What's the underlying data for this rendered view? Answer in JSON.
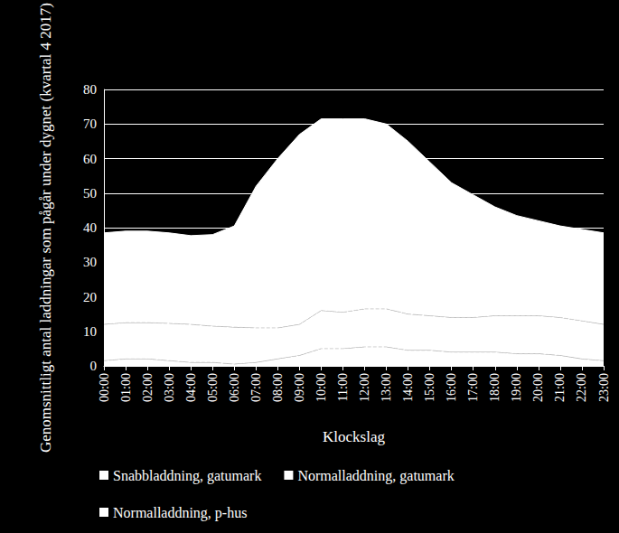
{
  "chart_data": {
    "type": "area",
    "stacked": true,
    "x_label": "Klockslag",
    "y_label": "Genomsnittligt antal laddningar som pågår under dygnet (kvartal 4 2017)",
    "categories": [
      "00:00",
      "01:00",
      "02:00",
      "03:00",
      "04:00",
      "05:00",
      "06:00",
      "07:00",
      "08:00",
      "09:00",
      "10:00",
      "11:00",
      "12:00",
      "13:00",
      "14:00",
      "15:00",
      "16:00",
      "17:00",
      "18:00",
      "19:00",
      "20:00",
      "21:00",
      "22:00",
      "23:00"
    ],
    "series": [
      {
        "name": "Snabbladdning, gatumark",
        "color": "#ffffff",
        "line_style": "dashed",
        "values": [
          1.5,
          2,
          2,
          1.5,
          1,
          1,
          0.5,
          1,
          2,
          3,
          5,
          5,
          5.5,
          5.5,
          4.5,
          4.5,
          4,
          4,
          4,
          3.5,
          3.5,
          3,
          2,
          1.5
        ]
      },
      {
        "name": "Normalladdning, gatumark",
        "color": "#ffffff",
        "line_style": "dashed",
        "values": [
          10.5,
          10.5,
          10.5,
          10.8,
          11,
          10.5,
          10.7,
          10,
          9,
          9,
          11,
          10.5,
          11,
          11,
          10.5,
          10,
          10,
          10,
          10.5,
          11,
          11,
          11,
          11,
          10.5
        ]
      },
      {
        "name": "Normalladdning, p-hus",
        "color": "#ffffff",
        "line_style": "solid",
        "values": [
          26.5,
          26.5,
          26.5,
          26.2,
          25.7,
          26.5,
          29.3,
          41,
          49,
          55,
          55.5,
          56,
          55,
          53.5,
          50,
          44.5,
          39,
          35.5,
          31.5,
          29,
          27.5,
          26.5,
          26.5,
          26.5
        ]
      }
    ],
    "ylim": [
      0,
      80
    ],
    "yticks": [
      0,
      10,
      20,
      30,
      40,
      50,
      60,
      70,
      80
    ],
    "grid": true,
    "legend": "bottom"
  }
}
